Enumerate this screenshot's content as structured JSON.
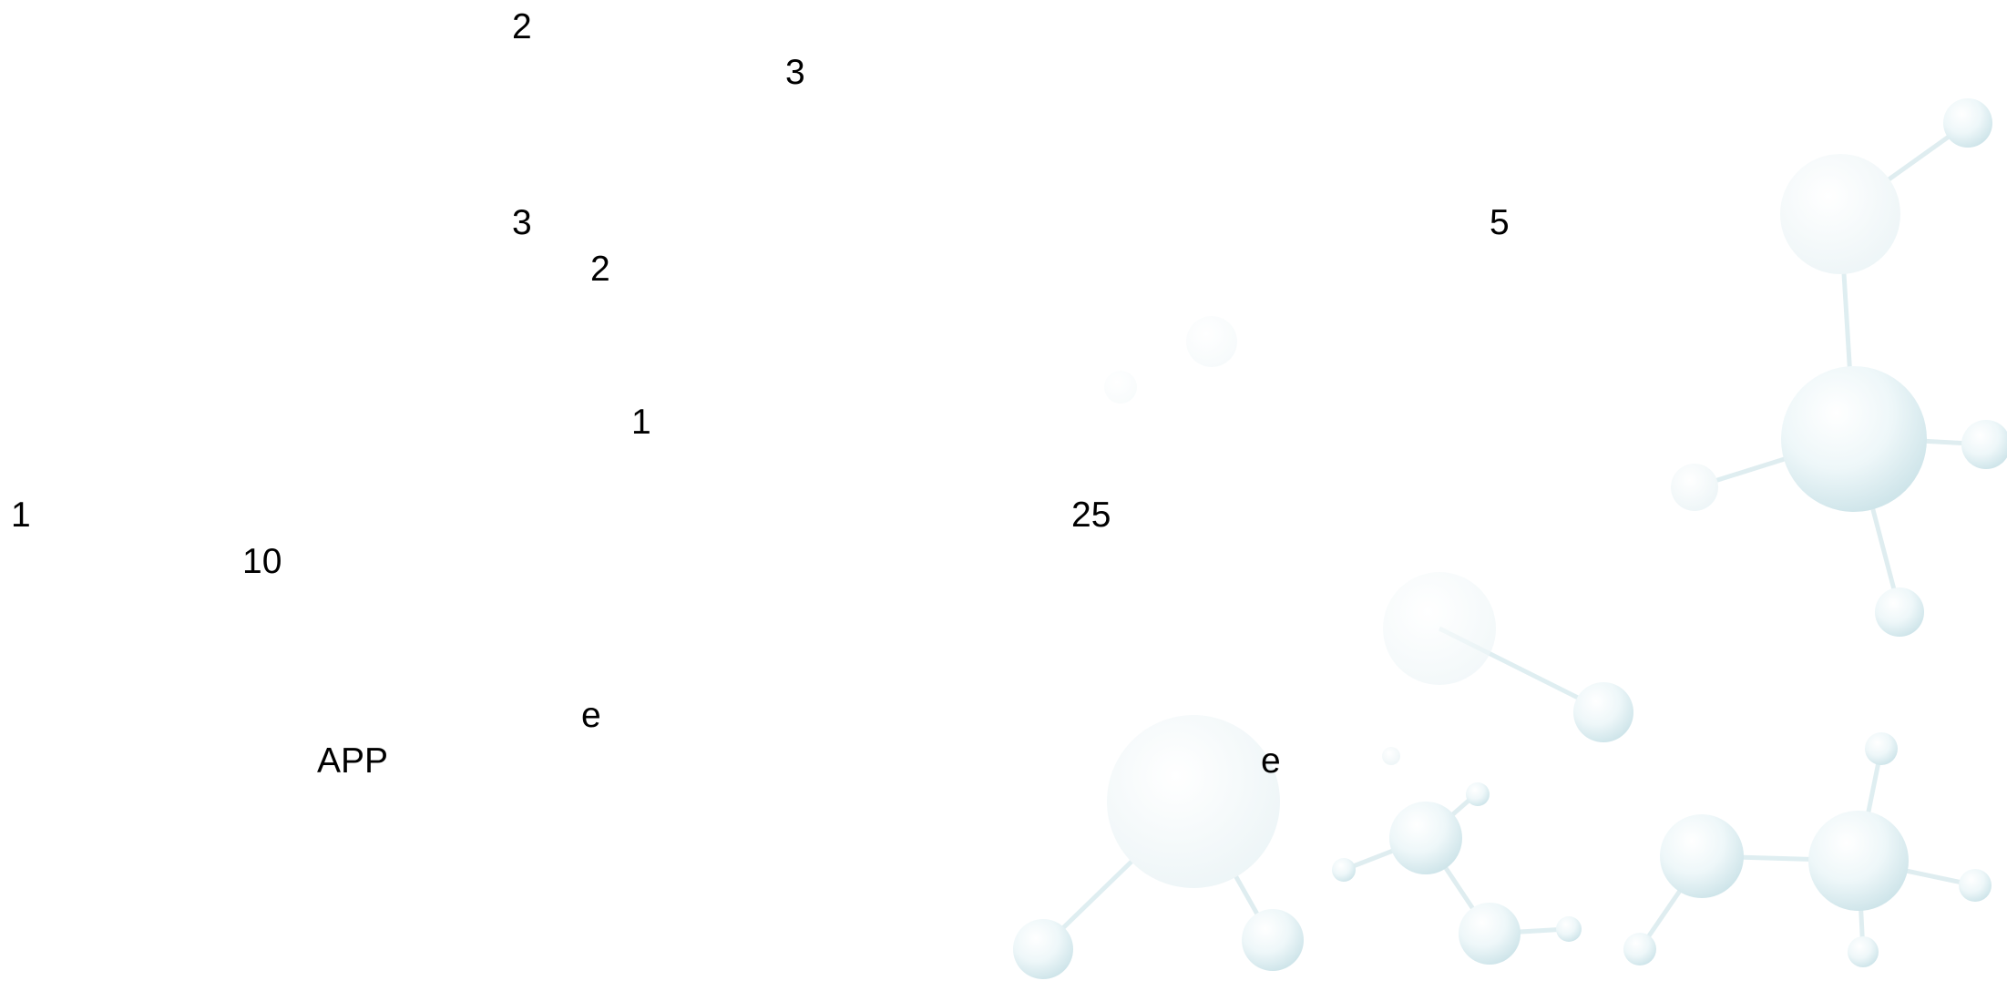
{
  "fragments": [
    {
      "id": "f1",
      "text": "2"
    },
    {
      "id": "f2",
      "text": "3"
    },
    {
      "id": "f3",
      "text": "3"
    },
    {
      "id": "f4",
      "text": "5"
    },
    {
      "id": "f5",
      "text": "2"
    },
    {
      "id": "f6",
      "text": "1"
    },
    {
      "id": "f7",
      "text": "1"
    },
    {
      "id": "f8",
      "text": "25"
    },
    {
      "id": "f9",
      "text": "10"
    },
    {
      "id": "f10",
      "text": "e"
    },
    {
      "id": "f11",
      "text": "APP"
    },
    {
      "id": "f12",
      "text": "e"
    }
  ],
  "decor": {
    "sphere_fill": "#e8f4f6",
    "sphere_edge": "#c9e2e8",
    "bond_color": "#dcecef"
  }
}
